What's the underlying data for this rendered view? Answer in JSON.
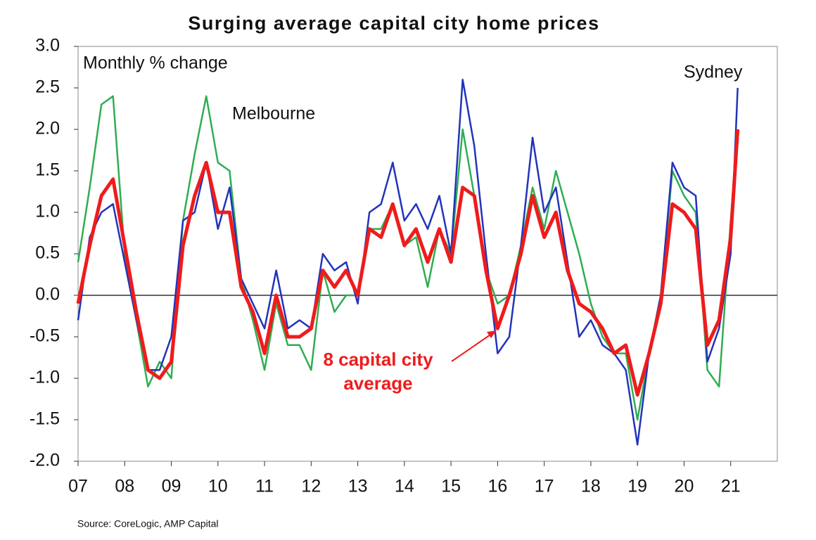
{
  "chart_data": {
    "type": "line",
    "title": "Surging average capital city home prices",
    "y_label": "Monthly % change",
    "source": "Source: CoreLogic, AMP Capital",
    "xlim": [
      2007,
      2022
    ],
    "xticks": [
      {
        "value": 2007,
        "label": "07"
      },
      {
        "value": 2008,
        "label": "08"
      },
      {
        "value": 2009,
        "label": "09"
      },
      {
        "value": 2010,
        "label": "10"
      },
      {
        "value": 2011,
        "label": "11"
      },
      {
        "value": 2012,
        "label": "12"
      },
      {
        "value": 2013,
        "label": "13"
      },
      {
        "value": 2014,
        "label": "14"
      },
      {
        "value": 2015,
        "label": "15"
      },
      {
        "value": 2016,
        "label": "16"
      },
      {
        "value": 2017,
        "label": "17"
      },
      {
        "value": 2018,
        "label": "18"
      },
      {
        "value": 2019,
        "label": "19"
      },
      {
        "value": 2020,
        "label": "20"
      },
      {
        "value": 2021,
        "label": "21"
      }
    ],
    "ylim": [
      -2,
      3
    ],
    "yticks": [
      {
        "value": 3,
        "label": "3.0"
      },
      {
        "value": 2.5,
        "label": "2.5"
      },
      {
        "value": 2,
        "label": "2.0"
      },
      {
        "value": 1.5,
        "label": "1.5"
      },
      {
        "value": 1,
        "label": "1.0"
      },
      {
        "value": 0.5,
        "label": "0.5"
      },
      {
        "value": 0,
        "label": "0.0"
      },
      {
        "value": -0.5,
        "label": "-0.5"
      },
      {
        "value": -1,
        "label": "-1.0"
      },
      {
        "value": -1.5,
        "label": "-1.5"
      },
      {
        "value": -2,
        "label": "-2.0"
      }
    ],
    "x": [
      2007,
      2007.25,
      2007.5,
      2007.75,
      2008,
      2008.25,
      2008.5,
      2008.75,
      2009,
      2009.25,
      2009.5,
      2009.75,
      2010,
      2010.25,
      2010.5,
      2010.75,
      2011,
      2011.25,
      2011.5,
      2011.75,
      2012,
      2012.25,
      2012.5,
      2012.75,
      2013,
      2013.25,
      2013.5,
      2013.75,
      2014,
      2014.25,
      2014.5,
      2014.75,
      2015,
      2015.25,
      2015.5,
      2015.75,
      2016,
      2016.25,
      2016.5,
      2016.75,
      2017,
      2017.25,
      2017.5,
      2017.75,
      2018,
      2018.25,
      2018.5,
      2018.75,
      2019,
      2019.25,
      2019.5,
      2019.75,
      2020,
      2020.25,
      2020.5,
      2020.75,
      2021,
      2021.15
    ],
    "series": [
      {
        "name": "Melbourne",
        "color": "#2eae52",
        "width": 2.5,
        "values": [
          0.4,
          1.3,
          2.3,
          2.4,
          0.5,
          -0.3,
          -1.1,
          -0.8,
          -1.0,
          0.9,
          1.7,
          2.4,
          1.6,
          1.5,
          0.2,
          -0.3,
          -0.9,
          -0.1,
          -0.6,
          -0.6,
          -0.9,
          0.3,
          -0.2,
          0.0,
          0.0,
          0.8,
          0.8,
          1.1,
          0.6,
          0.7,
          0.1,
          0.8,
          0.5,
          2.0,
          1.2,
          0.3,
          -0.1,
          0.0,
          0.6,
          1.3,
          0.8,
          1.5,
          1.0,
          0.5,
          -0.1,
          -0.5,
          -0.7,
          -0.7,
          -1.5,
          -0.7,
          0.0,
          1.5,
          1.2,
          1.0,
          -0.9,
          -1.1,
          0.9,
          2.0
        ]
      },
      {
        "name": "Sydney",
        "color": "#2233bb",
        "width": 2.5,
        "values": [
          -0.3,
          0.7,
          1.0,
          1.1,
          0.4,
          -0.3,
          -0.9,
          -0.9,
          -0.5,
          0.9,
          1.0,
          1.6,
          0.8,
          1.3,
          0.2,
          -0.1,
          -0.4,
          0.3,
          -0.4,
          -0.3,
          -0.4,
          0.5,
          0.3,
          0.4,
          -0.1,
          1.0,
          1.1,
          1.6,
          0.9,
          1.1,
          0.8,
          1.2,
          0.5,
          2.6,
          1.8,
          0.5,
          -0.7,
          -0.5,
          0.6,
          1.9,
          1.0,
          1.3,
          0.4,
          -0.5,
          -0.3,
          -0.6,
          -0.7,
          -0.9,
          -1.8,
          -0.7,
          0.0,
          1.6,
          1.3,
          1.2,
          -0.8,
          -0.4,
          0.5,
          2.5
        ]
      },
      {
        "name": "8 capital city average",
        "color": "#ee1c1c",
        "width": 5,
        "values": [
          -0.1,
          0.6,
          1.2,
          1.4,
          0.6,
          -0.2,
          -0.9,
          -1.0,
          -0.8,
          0.6,
          1.2,
          1.6,
          1.0,
          1.0,
          0.1,
          -0.2,
          -0.7,
          0.0,
          -0.5,
          -0.5,
          -0.4,
          0.3,
          0.1,
          0.3,
          0.0,
          0.8,
          0.7,
          1.1,
          0.6,
          0.8,
          0.4,
          0.8,
          0.4,
          1.3,
          1.2,
          0.3,
          -0.4,
          0.0,
          0.5,
          1.2,
          0.7,
          1.0,
          0.3,
          -0.1,
          -0.2,
          -0.4,
          -0.7,
          -0.6,
          -1.2,
          -0.7,
          -0.1,
          1.1,
          1.0,
          0.8,
          -0.6,
          -0.3,
          0.7,
          2.0
        ]
      }
    ]
  }
}
